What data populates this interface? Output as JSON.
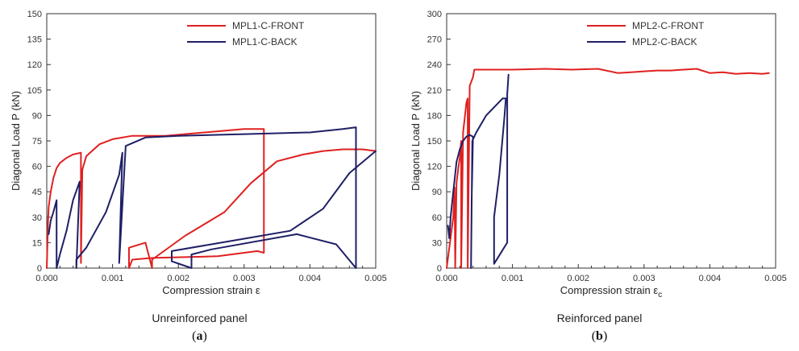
{
  "chart_data": [
    {
      "type": "line",
      "ylabel": "Diagonal Load P (kN)",
      "xlabel": "Compression strain ε",
      "caption": "Unreinforced panel",
      "panel_open": "(",
      "panel_letter": "a",
      "panel_close": ")",
      "xlim": [
        0,
        0.005
      ],
      "ylim": [
        0,
        150
      ],
      "xticks": [
        "0.000",
        "0.001",
        "0.002",
        "0.003",
        "0.004",
        "0.005"
      ],
      "yticks": [
        "0",
        "15",
        "30",
        "45",
        "60",
        "75",
        "90",
        "105",
        "120",
        "135",
        "150"
      ],
      "legend_position": "top-right",
      "series": [
        {
          "name": "MPL1-C-FRONT",
          "color": "#e02020",
          "x": [
            0.0,
            2e-05,
            3e-05,
            6e-05,
            0.0001,
            0.00015,
            0.0002,
            0.0003,
            0.0004,
            0.00052,
            0.00052,
            0.00054,
            0.0006,
            0.0008,
            0.001,
            0.0013,
            0.0018,
            0.0024,
            0.003,
            0.0033,
            0.0033,
            0.0032,
            0.0026,
            0.0016,
            0.0013,
            0.00125,
            0.00125,
            0.0015,
            0.0016,
            0.0016,
            0.0021,
            0.0027,
            0.0031,
            0.0035,
            0.0039,
            0.0042,
            0.0045,
            0.0048,
            0.005
          ],
          "y": [
            0,
            28,
            36,
            45,
            53,
            59,
            62,
            65,
            67,
            68,
            3,
            58,
            66,
            73,
            76,
            78,
            78,
            80,
            82,
            82,
            9,
            10,
            7,
            6,
            5,
            0,
            12,
            15,
            0,
            5,
            19,
            33,
            50,
            63,
            67,
            69,
            70,
            70,
            69
          ]
        },
        {
          "name": "MPL1-C-BACK",
          "color": "#1f1f66",
          "x": [
            3e-05,
            6e-05,
            0.0001,
            0.00015,
            0.00015,
            0.0002,
            0.0003,
            0.0004,
            0.0005,
            0.00045,
            0.00045,
            0.0006,
            0.0009,
            0.0011,
            0.00115,
            0.0011,
            0.0012,
            0.0015,
            0.002,
            0.003,
            0.004,
            0.0045,
            0.0047,
            0.0047,
            0.0047,
            0.0044,
            0.0038,
            0.0025,
            0.0022,
            0.0022,
            0.0019,
            0.0019,
            0.0025,
            0.0031,
            0.0037,
            0.0042,
            0.0046,
            0.005
          ],
          "y": [
            20,
            28,
            33,
            40,
            0,
            8,
            22,
            40,
            51,
            0,
            5,
            12,
            33,
            55,
            68,
            3,
            72,
            77,
            78,
            79,
            80,
            82,
            83,
            80,
            0,
            14,
            20,
            11,
            8,
            0,
            4,
            10,
            14,
            18,
            22,
            35,
            56,
            69
          ]
        }
      ]
    },
    {
      "type": "line",
      "ylabel": "Diagonal Load P (kN)",
      "xlabel": "Compression strain ε",
      "xlabel_sub": "c",
      "caption": "Reinforced panel",
      "panel_open": "(",
      "panel_letter": "b",
      "panel_close": ")",
      "xlim": [
        0,
        0.005
      ],
      "ylim": [
        0,
        300
      ],
      "xticks": [
        "0.000",
        "0.001",
        "0.002",
        "0.003",
        "0.004",
        "0.005"
      ],
      "yticks": [
        "0",
        "30",
        "60",
        "90",
        "120",
        "150",
        "180",
        "210",
        "240",
        "270",
        "300"
      ],
      "legend_position": "top-right",
      "series": [
        {
          "name": "MPL2-C-FRONT",
          "color": "#e02020",
          "x": [
            0.0,
            5e-05,
            0.0001,
            0.00012,
            0.00013,
            0.00015,
            0.00018,
            0.0002,
            0.00022,
            0.00022,
            0.00025,
            0.0003,
            0.00032,
            0.00032,
            0.00035,
            0.0004,
            0.00042,
            0.0007,
            0.001,
            0.0015,
            0.0019,
            0.0023,
            0.0026,
            0.0028,
            0.003,
            0.0032,
            0.0034,
            0.0036,
            0.0038,
            0.004,
            0.0042,
            0.0044,
            0.0046,
            0.0048,
            0.0049
          ],
          "y": [
            0,
            30,
            60,
            95,
            0,
            100,
            120,
            130,
            150,
            0,
            160,
            195,
            200,
            0,
            215,
            225,
            234,
            234,
            234,
            235,
            234,
            235,
            230,
            231,
            232,
            233,
            233,
            234,
            235,
            230,
            231,
            229,
            230,
            229,
            230
          ]
        },
        {
          "name": "MPL2-C-BACK",
          "color": "#1f1f66",
          "x": [
            2e-05,
            4e-05,
            6e-05,
            0.0001,
            0.00015,
            0.0002,
            0.00025,
            0.0003,
            0.00035,
            0.0004,
            0.00038,
            0.00037,
            0.00039,
            0.00045,
            0.0006,
            0.00085,
            0.0009,
            0.00088,
            0.0008,
            0.00072,
            0.00072,
            0.0008,
            0.00088,
            0.00092,
            0.00092,
            0.00094
          ],
          "y": [
            50,
            35,
            60,
            90,
            125,
            140,
            150,
            155,
            157,
            155,
            80,
            0,
            150,
            160,
            180,
            200,
            200,
            180,
            110,
            60,
            5,
            15,
            25,
            30,
            205,
            228
          ]
        }
      ]
    }
  ]
}
